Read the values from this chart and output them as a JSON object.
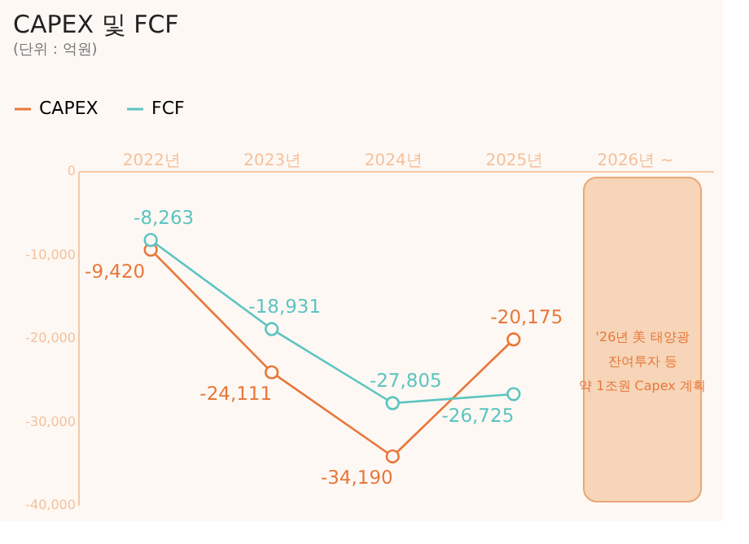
{
  "chart_data": {
    "type": "line",
    "title": "CAPEX 및 FCF",
    "subtitle": "(단위 : 억원)",
    "categories": [
      "2022년",
      "2023년",
      "2024년",
      "2025년",
      "2026년 ~"
    ],
    "series": [
      {
        "name": "CAPEX",
        "color": "#e8773a",
        "values": [
          -9420,
          -24111,
          -34190,
          -20175,
          null
        ],
        "value_labels": [
          "-9,420",
          "-24,111",
          "-34,190",
          "-20,175",
          null
        ]
      },
      {
        "name": "FCF",
        "color": "#5cc4c0",
        "values": [
          -8263,
          -18931,
          -27805,
          -26725,
          null
        ],
        "value_labels": [
          "-8,263",
          "-18,931",
          "-27,805",
          "-26,725",
          null
        ]
      }
    ],
    "ylim": [
      -40000,
      0
    ],
    "yticks": [
      0,
      {
        "value": -10000,
        "label": "-10,000"
      },
      {
        "value": -20000,
        "label": "-20,000"
      },
      {
        "value": -30000,
        "label": "-30,000"
      },
      {
        "value": -40000,
        "label": "-40,000"
      }
    ],
    "bands": [
      {
        "axis": "x",
        "from": "2026년 ~",
        "to": "2026년 ~",
        "color": "#f6d5b8",
        "label": "'26년 美 태양광\n잔여투자 등\n약 1조원 Capex 계획"
      }
    ],
    "marker": "circle",
    "line_style": "solid",
    "grid": false,
    "legend": "top left"
  }
}
